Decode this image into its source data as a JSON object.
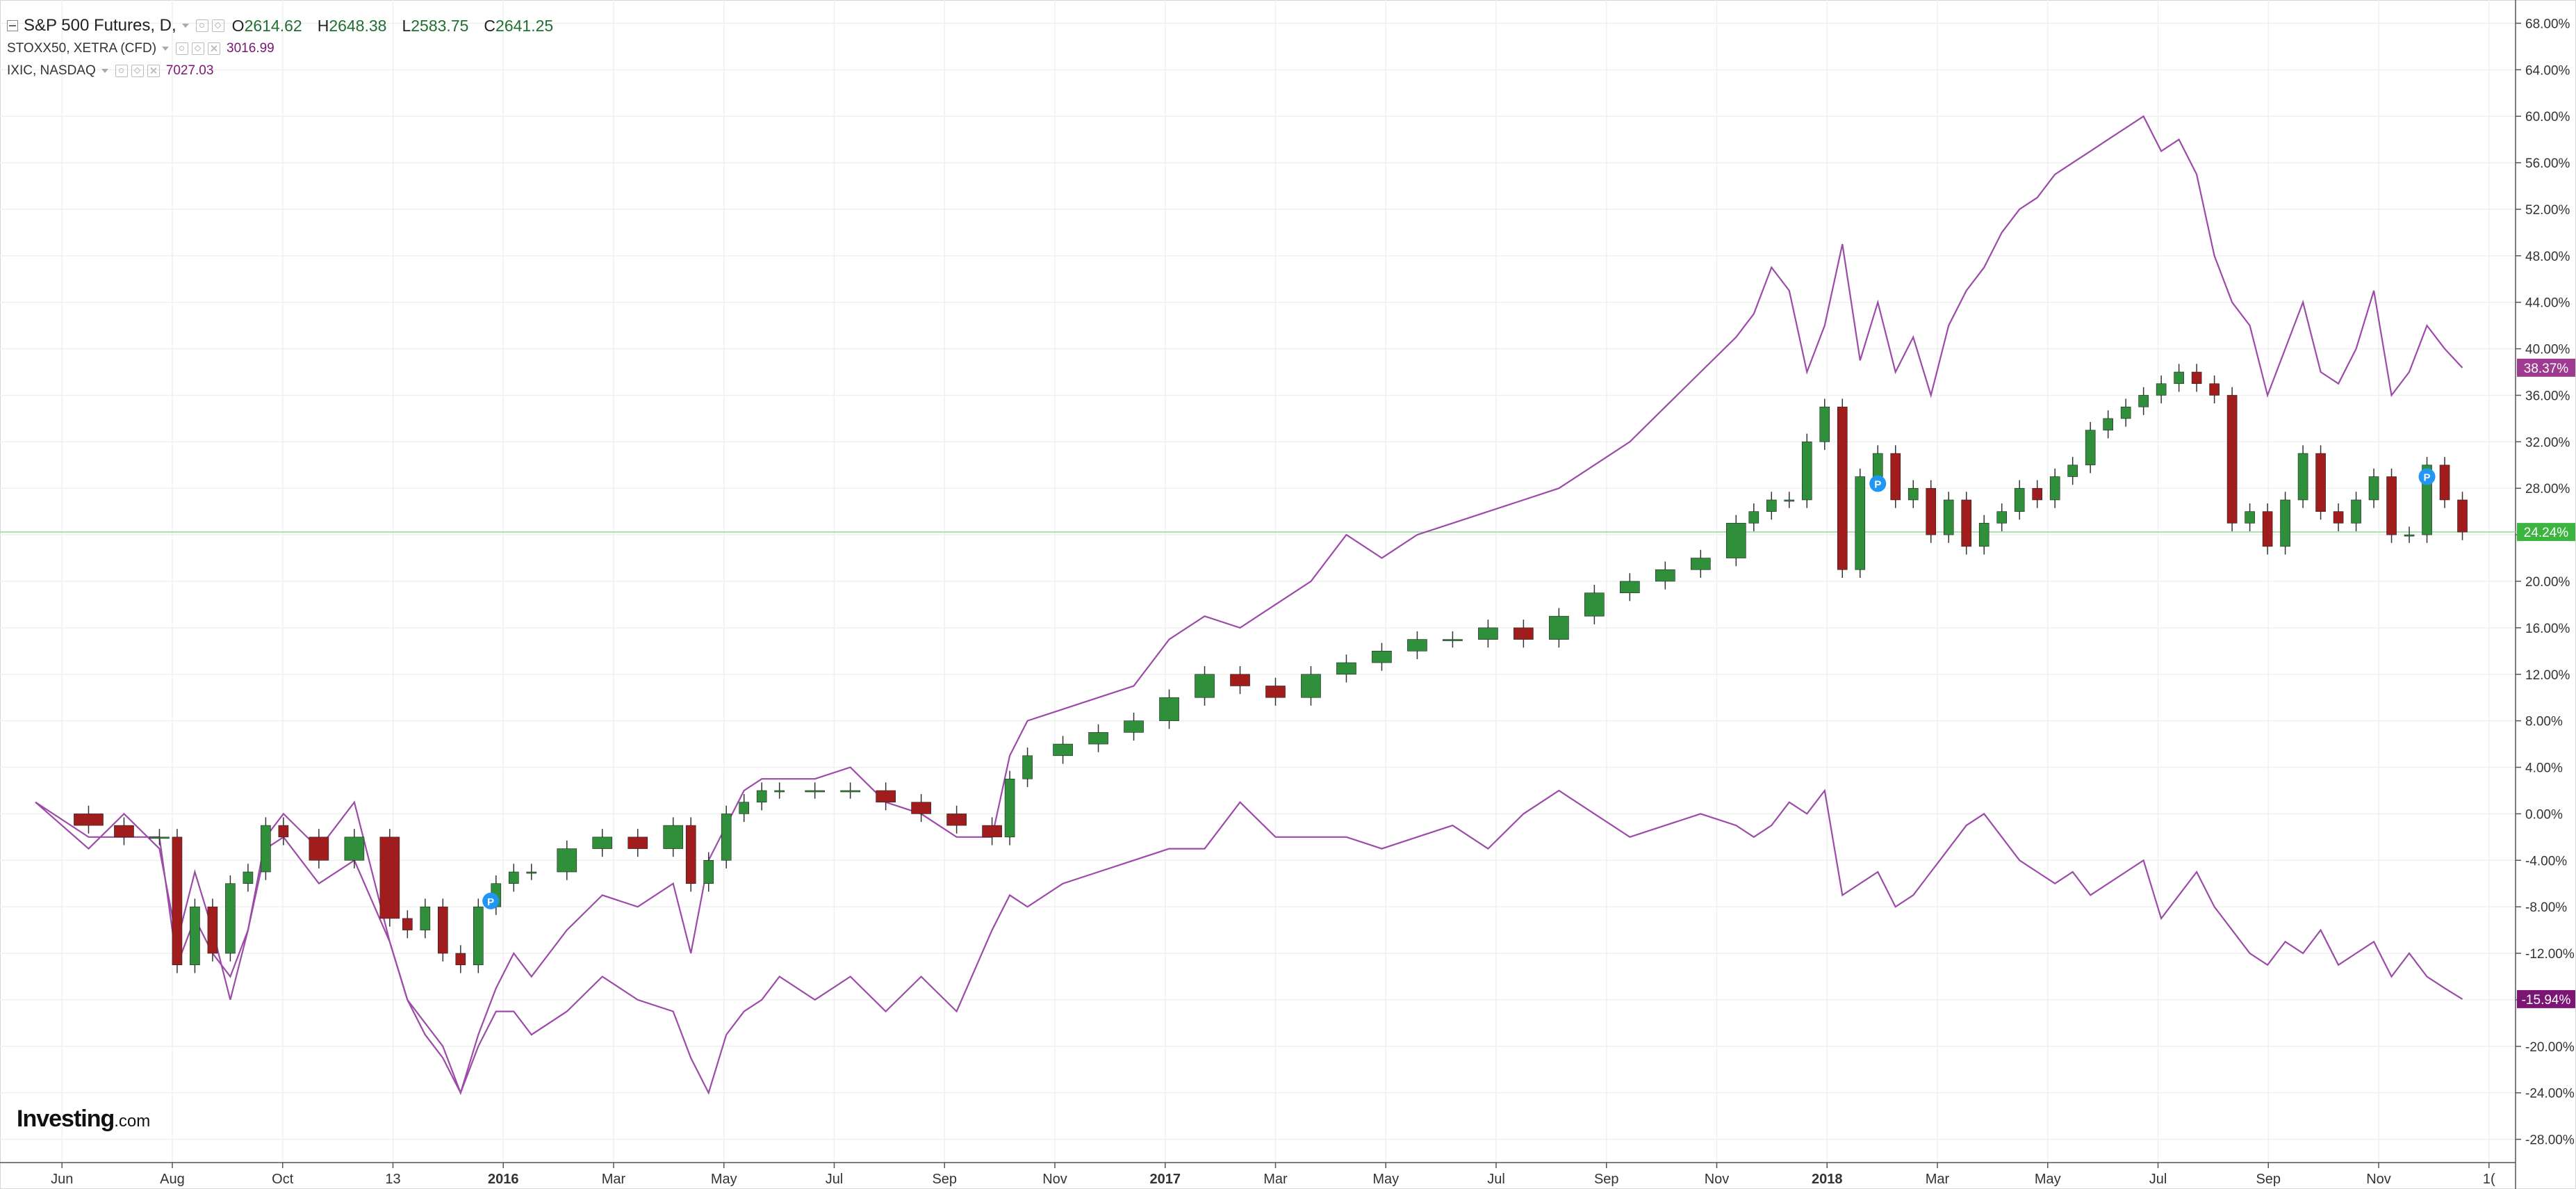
{
  "colors": {
    "up": "#2f8f3a",
    "down": "#a11d1d",
    "stoxx_line": "#9c4ba8",
    "nasdaq_line": "#9c4ba8",
    "last_value_green": "#3cb540",
    "badge_stoxx": "#9e3a8f",
    "badge_nasdaq": "#7b1675",
    "marker": "#2196f3",
    "grid": "#f0f0f0"
  },
  "legend": {
    "main_title": "S&P 500 Futures, D,",
    "open_label": "O",
    "open_value": "2614.62",
    "high_label": "H",
    "high_value": "2648.38",
    "low_label": "L",
    "low_value": "2583.75",
    "close_label": "C",
    "close_value": "2641.25",
    "series2_name": "STOXX50, XETRA (CFD)",
    "series2_value": "3016.99",
    "series3_name": "IXIC, NASDAQ",
    "series3_value": "7027.03"
  },
  "brand": {
    "name": "Investing",
    "suffix": ".com"
  },
  "chart_data": {
    "type": "line",
    "title": "S&P 500 Futures, D,",
    "xlabel": "",
    "ylabel": "",
    "ylim": [
      -30,
      70
    ],
    "grid": true,
    "y_ticks": [
      "68.00%",
      "64.00%",
      "60.00%",
      "56.00%",
      "52.00%",
      "48.00%",
      "44.00%",
      "40.00%",
      "36.00%",
      "32.00%",
      "28.00%",
      "24.00%",
      "20.00%",
      "16.00%",
      "12.00%",
      "8.00%",
      "4.00%",
      "0.00%",
      "-4.00%",
      "-8.00%",
      "-12.00%",
      "-16.00%",
      "-20.00%",
      "-24.00%",
      "-28.00%"
    ],
    "x_ticks": [
      "Jun",
      "Aug",
      "Oct",
      "13",
      "2016",
      "Mar",
      "May",
      "Jul",
      "Sep",
      "Nov",
      "2017",
      "Mar",
      "May",
      "Jul",
      "Sep",
      "Nov",
      "2018",
      "Mar",
      "May",
      "Jul",
      "Sep",
      "Nov",
      "1("
    ],
    "last_value_labels": [
      {
        "series": "IXIC, NASDAQ",
        "value": "38.37%"
      },
      {
        "series": "S&P 500 Futures",
        "value": "24.24%"
      },
      {
        "series": "STOXX50, XETRA (CFD)",
        "value": "-15.94%"
      }
    ],
    "horizontal_level": 24.24,
    "markers": [
      {
        "label": "P",
        "x": 25.7,
        "y": -7.5
      },
      {
        "label": "P",
        "x": 104.0,
        "y": 28.4
      },
      {
        "label": "P",
        "x": 135.0,
        "y": 29.0
      }
    ],
    "series": [
      {
        "name": "S&P 500 Futures, D,",
        "style": "candlestick",
        "x": [
          0,
          3,
          5,
          7,
          8,
          9,
          10,
          11,
          12,
          13,
          14,
          16,
          18,
          20,
          21,
          22,
          23,
          24,
          25,
          26,
          27,
          28,
          30,
          32,
          34,
          36,
          37,
          38,
          39,
          40,
          41,
          42,
          44,
          46,
          48,
          50,
          52,
          54,
          55,
          56,
          58,
          60,
          62,
          64,
          66,
          68,
          70,
          72,
          74,
          76,
          78,
          80,
          82,
          84,
          86,
          88,
          90,
          92,
          94,
          96,
          97,
          98,
          99,
          100,
          101,
          102,
          103,
          104,
          105,
          106,
          107,
          108,
          109,
          110,
          111,
          112,
          113,
          114,
          115,
          116,
          117,
          118,
          119,
          120,
          121,
          122,
          123,
          124,
          125,
          126,
          127,
          128,
          129,
          130,
          131,
          132,
          133,
          134,
          135,
          136,
          137
        ],
        "values": [
          0,
          -1,
          -2,
          -2,
          -13,
          -8,
          -12,
          -6,
          -5,
          -1,
          -2,
          -4,
          -2,
          -9,
          -10,
          -8,
          -12,
          -13,
          -8,
          -6,
          -5,
          -5,
          -3,
          -2,
          -3,
          -1,
          -6,
          -4,
          0,
          1,
          2,
          2,
          2,
          2,
          1,
          0,
          -1,
          -2,
          3,
          5,
          6,
          7,
          8,
          10,
          12,
          11,
          10,
          12,
          13,
          14,
          15,
          15,
          16,
          15,
          17,
          19,
          20,
          21,
          22,
          25,
          26,
          27,
          27,
          32,
          35,
          21,
          29,
          31,
          27,
          28,
          24,
          27,
          23,
          25,
          26,
          28,
          27,
          29,
          30,
          33,
          34,
          35,
          36,
          37,
          38,
          37,
          36,
          25,
          26,
          23,
          27,
          31,
          26,
          25,
          27,
          29,
          24,
          24,
          30,
          27,
          24.24
        ]
      },
      {
        "name": "IXIC, NASDAQ",
        "style": "line",
        "x": [
          0,
          3,
          5,
          7,
          8,
          9,
          10,
          11,
          12,
          13,
          14,
          16,
          18,
          20,
          21,
          22,
          23,
          24,
          25,
          26,
          27,
          28,
          30,
          32,
          34,
          36,
          37,
          38,
          39,
          40,
          41,
          42,
          44,
          46,
          48,
          50,
          52,
          54,
          55,
          56,
          58,
          60,
          62,
          64,
          66,
          68,
          70,
          72,
          74,
          76,
          78,
          80,
          82,
          84,
          86,
          88,
          90,
          92,
          94,
          96,
          97,
          98,
          99,
          100,
          101,
          102,
          103,
          104,
          105,
          106,
          107,
          108,
          109,
          110,
          111,
          112,
          113,
          114,
          115,
          116,
          117,
          118,
          119,
          120,
          121,
          122,
          123,
          124,
          125,
          126,
          127,
          128,
          129,
          130,
          131,
          132,
          133,
          134,
          135,
          136,
          137
        ],
        "values": [
          1,
          -3,
          0,
          -3,
          -11,
          -5,
          -10,
          -16,
          -10,
          -2,
          0,
          -3,
          1,
          -11,
          -16,
          -18,
          -20,
          -24,
          -19,
          -15,
          -12,
          -14,
          -10,
          -7,
          -8,
          -6,
          -12,
          -4,
          -1,
          2,
          3,
          3,
          3,
          4,
          1,
          0,
          -2,
          -2,
          5,
          8,
          9,
          10,
          11,
          15,
          17,
          16,
          18,
          20,
          24,
          22,
          24,
          25,
          26,
          27,
          28,
          30,
          32,
          35,
          38,
          41,
          43,
          47,
          45,
          38,
          42,
          49,
          39,
          44,
          38,
          41,
          36,
          42,
          45,
          47,
          50,
          52,
          53,
          55,
          56,
          57,
          58,
          59,
          60,
          57,
          58,
          55,
          48,
          44,
          42,
          36,
          40,
          44,
          38,
          37,
          40,
          45,
          36,
          38,
          42,
          40,
          38.37
        ]
      },
      {
        "name": "STOXX50, XETRA (CFD)",
        "style": "line",
        "x": [
          0,
          3,
          5,
          7,
          8,
          9,
          10,
          11,
          12,
          13,
          14,
          16,
          18,
          20,
          21,
          22,
          23,
          24,
          25,
          26,
          27,
          28,
          30,
          32,
          34,
          36,
          37,
          38,
          39,
          40,
          41,
          42,
          44,
          46,
          48,
          50,
          52,
          54,
          55,
          56,
          58,
          60,
          62,
          64,
          66,
          68,
          70,
          72,
          74,
          76,
          78,
          80,
          82,
          84,
          86,
          88,
          90,
          92,
          94,
          96,
          97,
          98,
          99,
          100,
          101,
          102,
          103,
          104,
          105,
          106,
          107,
          108,
          109,
          110,
          111,
          112,
          113,
          114,
          115,
          116,
          117,
          118,
          119,
          120,
          121,
          122,
          123,
          124,
          125,
          126,
          127,
          128,
          129,
          130,
          131,
          132,
          133,
          134,
          135,
          136,
          137
        ],
        "values": [
          1,
          -2,
          -2,
          -2,
          -13,
          -9,
          -12,
          -14,
          -10,
          -3,
          -2,
          -6,
          -4,
          -11,
          -16,
          -19,
          -21,
          -24,
          -20,
          -17,
          -17,
          -19,
          -17,
          -14,
          -16,
          -17,
          -21,
          -24,
          -19,
          -17,
          -16,
          -14,
          -16,
          -14,
          -17,
          -14,
          -17,
          -10,
          -7,
          -8,
          -6,
          -5,
          -4,
          -3,
          -3,
          1,
          -2,
          -2,
          -2,
          -3,
          -2,
          -1,
          -3,
          0,
          2,
          0,
          -2,
          -1,
          0,
          -1,
          -2,
          -1,
          1,
          0,
          2,
          -7,
          -6,
          -5,
          -8,
          -7,
          -5,
          -3,
          -1,
          0,
          -2,
          -4,
          -5,
          -6,
          -5,
          -7,
          -6,
          -5,
          -4,
          -9,
          -7,
          -5,
          -8,
          -10,
          -12,
          -13,
          -11,
          -12,
          -10,
          -13,
          -12,
          -11,
          -14,
          -12,
          -14,
          -15,
          -15.94
        ]
      }
    ]
  }
}
